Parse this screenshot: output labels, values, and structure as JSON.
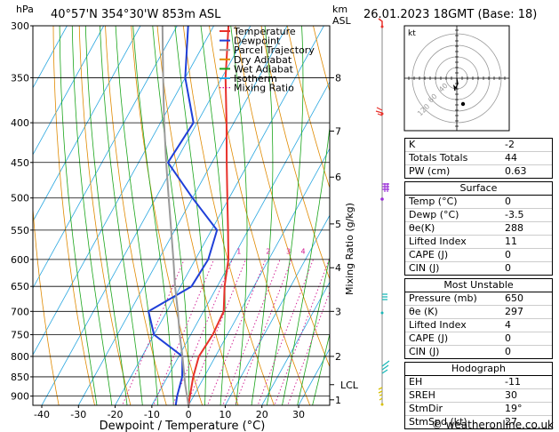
{
  "header": {
    "hpa_unit": "hPa",
    "location": "40°57'N  354°30'W  853m  ASL",
    "km_unit": "km",
    "asl_unit": "ASL",
    "date": "26.01.2023  18GMT  (Base: 18)"
  },
  "legend": [
    {
      "label": "Temperature",
      "color": "#e8312b",
      "style": "solid"
    },
    {
      "label": "Dewpoint",
      "color": "#1f3fd8",
      "style": "solid"
    },
    {
      "label": "Parcel Trajectory",
      "color": "#9a9a9a",
      "style": "solid"
    },
    {
      "label": "Dry Adiabat",
      "color": "#e08a00",
      "style": "solid"
    },
    {
      "label": "Wet Adiabat",
      "color": "#1aa51a",
      "style": "solid"
    },
    {
      "label": "Isotherm",
      "color": "#2aa7e0",
      "style": "solid"
    },
    {
      "label": "Mixing Ratio",
      "color": "#d0148e",
      "style": "dotted"
    }
  ],
  "chart_data": {
    "type": "line",
    "title": "",
    "xlabel": "Dewpoint / Temperature (°C)",
    "ylabel": "hPa",
    "xlim": [
      -40,
      35
    ],
    "ylim": [
      925,
      300
    ],
    "pressure_ticks": [
      300,
      350,
      400,
      450,
      500,
      550,
      600,
      650,
      700,
      750,
      800,
      850,
      900
    ],
    "temperature_ticks": [
      -40,
      -30,
      -20,
      -10,
      0,
      10,
      20,
      30
    ],
    "km_ticks": [
      {
        "label": "8",
        "p": 350
      },
      {
        "label": "7",
        "p": 410
      },
      {
        "label": "6",
        "p": 470
      },
      {
        "label": "5",
        "p": 540
      },
      {
        "label": "4",
        "p": 615
      },
      {
        "label": "3",
        "p": 700
      },
      {
        "label": "2",
        "p": 800
      },
      {
        "label": "1",
        "p": 910
      },
      {
        "label": "LCL",
        "p": 870
      }
    ],
    "mixing_ratio_axis_label": "Mixing Ratio (g/kg)",
    "mixing_ratio_labels": [
      "1",
      "2",
      "3",
      "4",
      "6",
      "8",
      "10",
      "15",
      "20",
      "25"
    ],
    "mixing_ratio_label_x": [
      -9,
      -1,
      4.5,
      8.5,
      15,
      21,
      26,
      33,
      38,
      41
    ],
    "series": [
      {
        "name": "Temperature",
        "color": "#e8312b",
        "points": [
          [
            925,
            0
          ],
          [
            900,
            -1
          ],
          [
            850,
            -3
          ],
          [
            800,
            -4.5
          ],
          [
            750,
            -4
          ],
          [
            700,
            -4.5
          ],
          [
            650,
            -8
          ],
          [
            600,
            -11
          ],
          [
            550,
            -15.5
          ],
          [
            500,
            -20.5
          ],
          [
            450,
            -26
          ],
          [
            400,
            -32
          ],
          [
            350,
            -39
          ],
          [
            300,
            -46
          ]
        ]
      },
      {
        "name": "Dewpoint",
        "color": "#1f3fd8",
        "points": [
          [
            925,
            -3.5
          ],
          [
            900,
            -4.5
          ],
          [
            850,
            -6
          ],
          [
            800,
            -9
          ],
          [
            750,
            -20
          ],
          [
            700,
            -25
          ],
          [
            650,
            -17
          ],
          [
            600,
            -16.5
          ],
          [
            550,
            -18.5
          ],
          [
            500,
            -30
          ],
          [
            450,
            -42
          ],
          [
            400,
            -41
          ],
          [
            350,
            -50
          ],
          [
            300,
            -57
          ]
        ]
      },
      {
        "name": "Parcel Trajectory",
        "color": "#9a9a9a",
        "points": [
          [
            925,
            0
          ],
          [
            870,
            -4
          ],
          [
            800,
            -9
          ],
          [
            750,
            -13
          ],
          [
            700,
            -17
          ],
          [
            650,
            -21.5
          ],
          [
            600,
            -26
          ],
          [
            550,
            -31
          ],
          [
            500,
            -36.5
          ],
          [
            450,
            -42.5
          ],
          [
            400,
            -49
          ],
          [
            350,
            -56
          ],
          [
            300,
            -64
          ]
        ]
      }
    ]
  },
  "hodograph": {
    "label": "kt",
    "ring_labels": [
      "40",
      "60",
      "120"
    ]
  },
  "indices": [
    {
      "key": "K",
      "value": "-2"
    },
    {
      "key": "Totals Totals",
      "value": "44"
    },
    {
      "key": "PW (cm)",
      "value": "0.63"
    }
  ],
  "surface": {
    "title": "Surface",
    "rows": [
      {
        "key": "Temp (°C)",
        "value": "0"
      },
      {
        "key": "Dewp (°C)",
        "value": "-3.5"
      },
      {
        "key": "θe(K)",
        "value": "288"
      },
      {
        "key": "Lifted Index",
        "value": "11"
      },
      {
        "key": "CAPE (J)",
        "value": "0"
      },
      {
        "key": "CIN (J)",
        "value": "0"
      }
    ]
  },
  "most_unstable": {
    "title": "Most Unstable",
    "rows": [
      {
        "key": "Pressure (mb)",
        "value": "650"
      },
      {
        "key": "θe (K)",
        "value": "297"
      },
      {
        "key": "Lifted Index",
        "value": "4"
      },
      {
        "key": "CAPE (J)",
        "value": "0"
      },
      {
        "key": "CIN (J)",
        "value": "0"
      }
    ]
  },
  "hodograph_table": {
    "title": "Hodograph",
    "rows": [
      {
        "key": "EH",
        "value": "-11"
      },
      {
        "key": "SREH",
        "value": "30"
      },
      {
        "key": "StmDir",
        "value": "19°"
      },
      {
        "key": "StmSpd (kt)",
        "value": "27"
      }
    ]
  },
  "copyright": "© weatheronline.co.uk"
}
